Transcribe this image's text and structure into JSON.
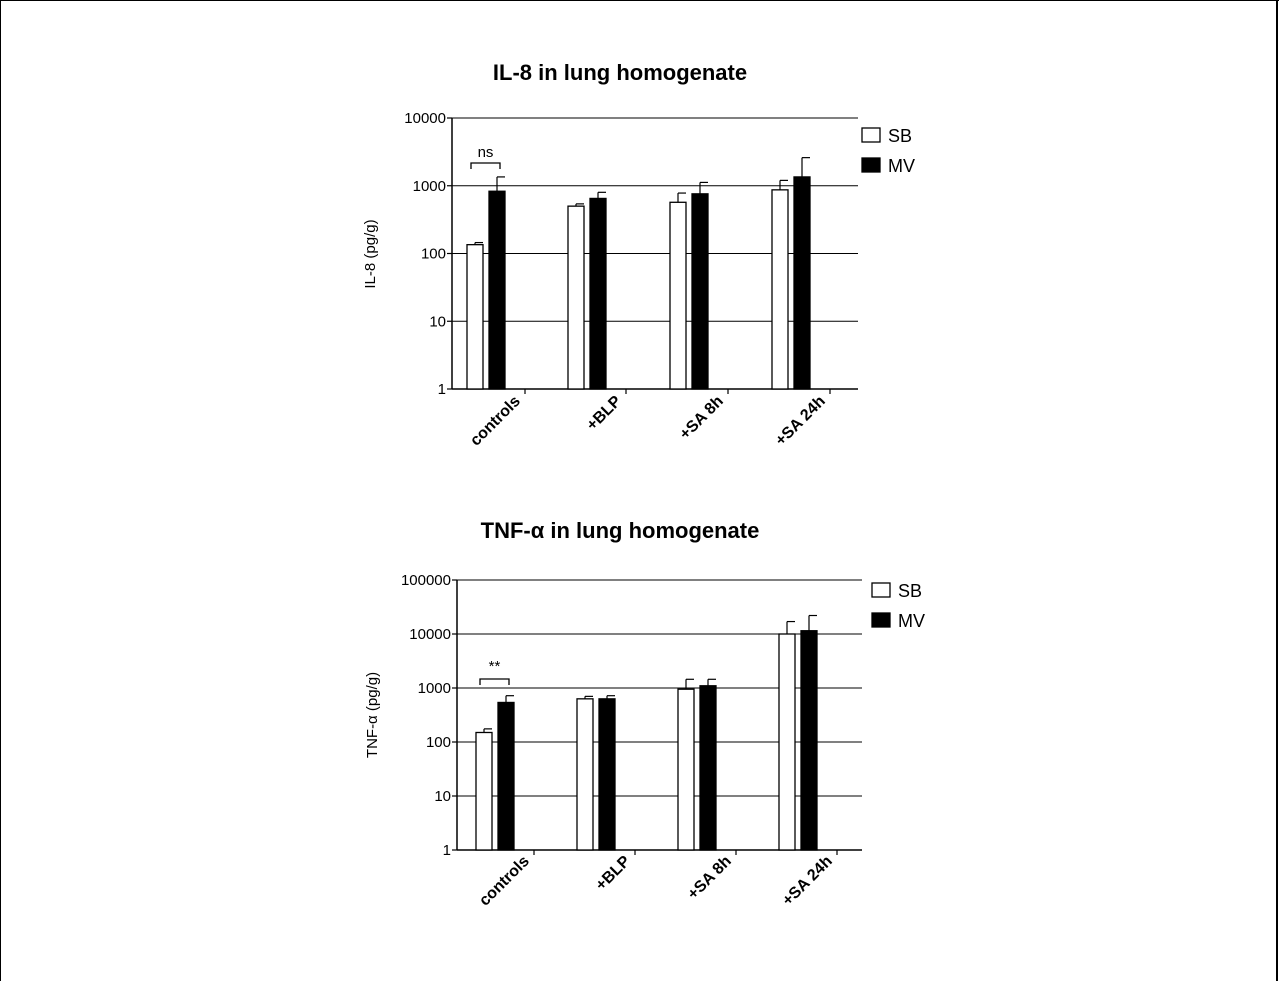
{
  "chart_data": [
    {
      "type": "bar",
      "title": "IL-8 in lung homogenate",
      "ylabel": "IL-8 (pg/g)",
      "yscale": "log",
      "ylim": [
        1,
        10000
      ],
      "yticks": [
        "1",
        "10",
        "100",
        "1000",
        "10000"
      ],
      "grid": "horizontal",
      "legend_position": "top-right",
      "categories": [
        "controls",
        "+BLP",
        "+SA 8h",
        "+SA 24h"
      ],
      "series": [
        {
          "name": "SB",
          "color": "#ffffff",
          "values": [
            135,
            500,
            570,
            870
          ],
          "errors": [
            145,
            540,
            780,
            1200
          ]
        },
        {
          "name": "MV",
          "color": "#000000",
          "values": [
            830,
            650,
            760,
            1350
          ],
          "errors": [
            1350,
            800,
            1120,
            2600
          ]
        }
      ],
      "annotations": [
        {
          "text": "ns",
          "between": "controls"
        }
      ]
    },
    {
      "type": "bar",
      "title": "TNF-α in lung homogenate",
      "ylabel": "TNF-α  (pg/g)",
      "yscale": "log",
      "ylim": [
        1,
        100000
      ],
      "yticks": [
        "1",
        "10",
        "100",
        "1000",
        "10000",
        "100000"
      ],
      "grid": "horizontal",
      "legend_position": "top-right",
      "categories": [
        "controls",
        "+BLP",
        "+SA 8h",
        "+SA 24h"
      ],
      "series": [
        {
          "name": "SB",
          "color": "#ffffff",
          "values": [
            150,
            630,
            950,
            10000
          ],
          "errors": [
            175,
            700,
            1450,
            17000
          ]
        },
        {
          "name": "MV",
          "color": "#000000",
          "values": [
            540,
            630,
            1100,
            11500
          ],
          "errors": [
            720,
            720,
            1450,
            22000
          ]
        }
      ],
      "annotations": [
        {
          "text": "**",
          "between": "controls"
        }
      ]
    }
  ]
}
